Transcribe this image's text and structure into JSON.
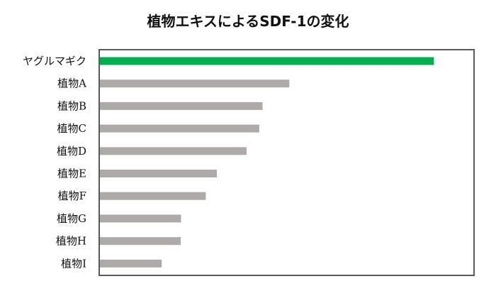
{
  "chart_data": {
    "type": "bar",
    "orientation": "horizontal",
    "title": "植物エキスによるSDF-1の変化",
    "categories": [
      "ヤグルマギク",
      "植物A",
      "植物B",
      "植物C",
      "植物D",
      "植物E",
      "植物F",
      "植物G",
      "植物H",
      "植物I"
    ],
    "values": [
      100,
      56.7,
      48.7,
      47.7,
      43.9,
      35.0,
      31.7,
      24.3,
      24.2,
      18.5
    ],
    "value_scale": "relative (no axis ticks shown)",
    "xlim": [
      0,
      112
    ],
    "xlabel": "",
    "ylabel": "",
    "grid": false,
    "colors": {
      "highlight": "#00b050",
      "default": "#aeaaaa",
      "frame": "#595959"
    }
  }
}
